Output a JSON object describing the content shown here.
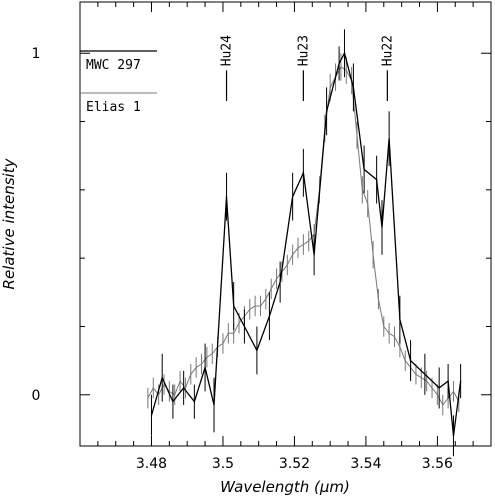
{
  "chart_data": {
    "type": "line",
    "xlabel": "Wavelength (μm)",
    "ylabel": "Relative intensity",
    "xlim": [
      3.46,
      3.575
    ],
    "ylim": [
      -0.15,
      1.15
    ],
    "x_ticks": [
      {
        "value": 3.48,
        "label": "3.48"
      },
      {
        "value": 3.5,
        "label": "3.5"
      },
      {
        "value": 3.52,
        "label": "3.52"
      },
      {
        "value": 3.54,
        "label": "3.54"
      },
      {
        "value": 3.56,
        "label": "3.56"
      }
    ],
    "y_ticks": [
      {
        "value": 0,
        "label": "0"
      },
      {
        "value": 1,
        "label": "1"
      }
    ],
    "line_markers": [
      {
        "label": "Hu24",
        "x": 3.501,
        "y_bottom": 0.86,
        "y_top": 0.95
      },
      {
        "label": "Hu23",
        "x": 3.5225,
        "y_bottom": 0.86,
        "y_top": 0.95
      },
      {
        "label": "Hu22",
        "x": 3.546,
        "y_bottom": 0.86,
        "y_top": 0.95
      }
    ],
    "legend": [
      {
        "name": "MWC 297",
        "style": "dark"
      },
      {
        "name": "Elias 1",
        "style": "light"
      }
    ],
    "colors": {
      "dark": "#000000",
      "light": "#777777"
    },
    "series": [
      {
        "name": "MWC 297",
        "style": "dark",
        "x": [
          3.48,
          3.483,
          3.486,
          3.489,
          3.492,
          3.495,
          3.4975,
          3.501,
          3.503,
          3.506,
          3.5095,
          3.513,
          3.516,
          3.5195,
          3.5225,
          3.5255,
          3.529,
          3.5325,
          3.534,
          3.5365,
          3.5395,
          3.543,
          3.5445,
          3.5465,
          3.5495,
          3.5525,
          3.5565,
          3.5605,
          3.563,
          3.5645,
          3.5665
        ],
        "y": [
          -0.06,
          0.05,
          -0.02,
          0.02,
          -0.02,
          0.08,
          -0.03,
          0.58,
          0.26,
          0.2,
          0.13,
          0.23,
          0.33,
          0.58,
          0.65,
          0.41,
          0.83,
          0.97,
          1.0,
          0.9,
          0.66,
          0.63,
          0.49,
          0.75,
          0.22,
          0.1,
          0.06,
          0.02,
          0.04,
          -0.12,
          0.04
        ],
        "err": [
          0.06,
          0.07,
          0.05,
          0.05,
          0.05,
          0.07,
          0.08,
          0.07,
          0.07,
          0.05,
          0.07,
          0.07,
          0.06,
          0.07,
          0.07,
          0.06,
          0.07,
          0.05,
          0.07,
          0.07,
          0.07,
          0.07,
          0.08,
          0.08,
          0.07,
          0.06,
          0.06,
          0.06,
          0.05,
          0.06,
          0.05
        ]
      },
      {
        "name": "Elias 1",
        "style": "light",
        "x": [
          3.479,
          3.4805,
          3.482,
          3.4835,
          3.485,
          3.4865,
          3.488,
          3.4895,
          3.491,
          3.4925,
          3.494,
          3.4955,
          3.497,
          3.4985,
          3.5,
          3.5015,
          3.503,
          3.5045,
          3.506,
          3.5075,
          3.509,
          3.5105,
          3.512,
          3.5135,
          3.515,
          3.5165,
          3.518,
          3.5195,
          3.521,
          3.5225,
          3.524,
          3.5255,
          3.527,
          3.5285,
          3.53,
          3.5315,
          3.533,
          3.5345,
          3.536,
          3.5375,
          3.539,
          3.5405,
          3.542,
          3.5435,
          3.545,
          3.5465,
          3.548,
          3.5495,
          3.551,
          3.5525,
          3.554,
          3.5555,
          3.557,
          3.5585,
          3.56,
          3.5615,
          3.563,
          3.5645,
          3.566
        ],
        "y": [
          -0.01,
          0.02,
          0.0,
          0.03,
          0.01,
          0.0,
          0.04,
          0.02,
          0.06,
          0.08,
          0.09,
          0.11,
          0.12,
          0.14,
          0.15,
          0.18,
          0.18,
          0.21,
          0.23,
          0.25,
          0.26,
          0.26,
          0.28,
          0.31,
          0.34,
          0.36,
          0.38,
          0.41,
          0.43,
          0.44,
          0.45,
          0.47,
          0.6,
          0.78,
          0.9,
          0.93,
          0.96,
          0.95,
          0.92,
          0.76,
          0.6,
          0.56,
          0.41,
          0.28,
          0.2,
          0.18,
          0.17,
          0.14,
          0.1,
          0.08,
          0.06,
          0.05,
          0.04,
          0.02,
          0.0,
          -0.03,
          -0.01,
          0.01,
          -0.02
        ],
        "err": [
          0.03,
          0.03,
          0.03,
          0.03,
          0.03,
          0.03,
          0.03,
          0.03,
          0.03,
          0.03,
          0.03,
          0.03,
          0.03,
          0.03,
          0.03,
          0.03,
          0.03,
          0.03,
          0.03,
          0.03,
          0.03,
          0.03,
          0.03,
          0.03,
          0.03,
          0.03,
          0.03,
          0.03,
          0.03,
          0.03,
          0.03,
          0.03,
          0.04,
          0.04,
          0.04,
          0.04,
          0.04,
          0.04,
          0.04,
          0.04,
          0.04,
          0.04,
          0.04,
          0.03,
          0.03,
          0.03,
          0.03,
          0.03,
          0.03,
          0.03,
          0.03,
          0.03,
          0.03,
          0.03,
          0.03,
          0.03,
          0.03,
          0.03,
          0.03
        ]
      }
    ]
  }
}
